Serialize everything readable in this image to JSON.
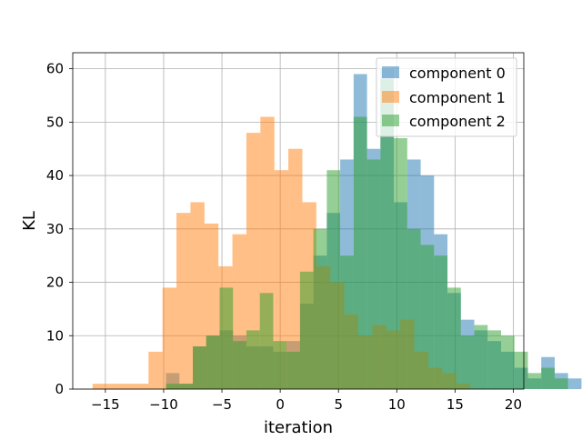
{
  "chart_data": {
    "type": "bar",
    "subtype": "overlapping-histogram",
    "title": "",
    "xlabel": "iteration",
    "ylabel": "KL",
    "xlim": [
      -17.8,
      20.9
    ],
    "ylim": [
      0,
      63
    ],
    "xticks": [
      -15,
      -10,
      -5,
      0,
      5,
      10,
      15,
      20
    ],
    "yticks": [
      0,
      10,
      20,
      30,
      40,
      50,
      60
    ],
    "xtick_labels": [
      "−15",
      "−10",
      "−5",
      "0",
      "5",
      "10",
      "15",
      "20"
    ],
    "ytick_labels": [
      "0",
      "10",
      "20",
      "30",
      "40",
      "50",
      "60"
    ],
    "grid": true,
    "legend_position": "upper right",
    "bar_alpha": 0.5,
    "series": [
      {
        "name": "component 0",
        "color": "#1f77b4",
        "bin_start": -9.8,
        "bin_width": 1.15,
        "values": [
          3,
          1,
          8,
          10,
          11,
          10,
          8,
          8,
          7,
          9,
          16,
          25,
          33,
          43,
          59,
          45,
          60,
          35,
          43,
          40,
          29,
          18,
          13,
          11,
          9,
          7,
          4,
          2,
          6,
          3,
          2
        ]
      },
      {
        "name": "component 1",
        "color": "#ff7f0e",
        "bin_start": -16.1,
        "bin_width": 1.2,
        "values": [
          1,
          1,
          1,
          1,
          7,
          19,
          33,
          35,
          31,
          23,
          29,
          48,
          51,
          41,
          45,
          35,
          23,
          20,
          14,
          10,
          12,
          11,
          13,
          7,
          4,
          3,
          1
        ]
      },
      {
        "name": "component 2",
        "color": "#2ca02c",
        "bin_start": -9.8,
        "bin_width": 1.15,
        "values": [
          1,
          1,
          8,
          10,
          19,
          9,
          11,
          18,
          9,
          7,
          22,
          30,
          41,
          25,
          51,
          43,
          58,
          47,
          30,
          27,
          25,
          19,
          10,
          12,
          11,
          10,
          7,
          3,
          4,
          2
        ]
      }
    ]
  }
}
